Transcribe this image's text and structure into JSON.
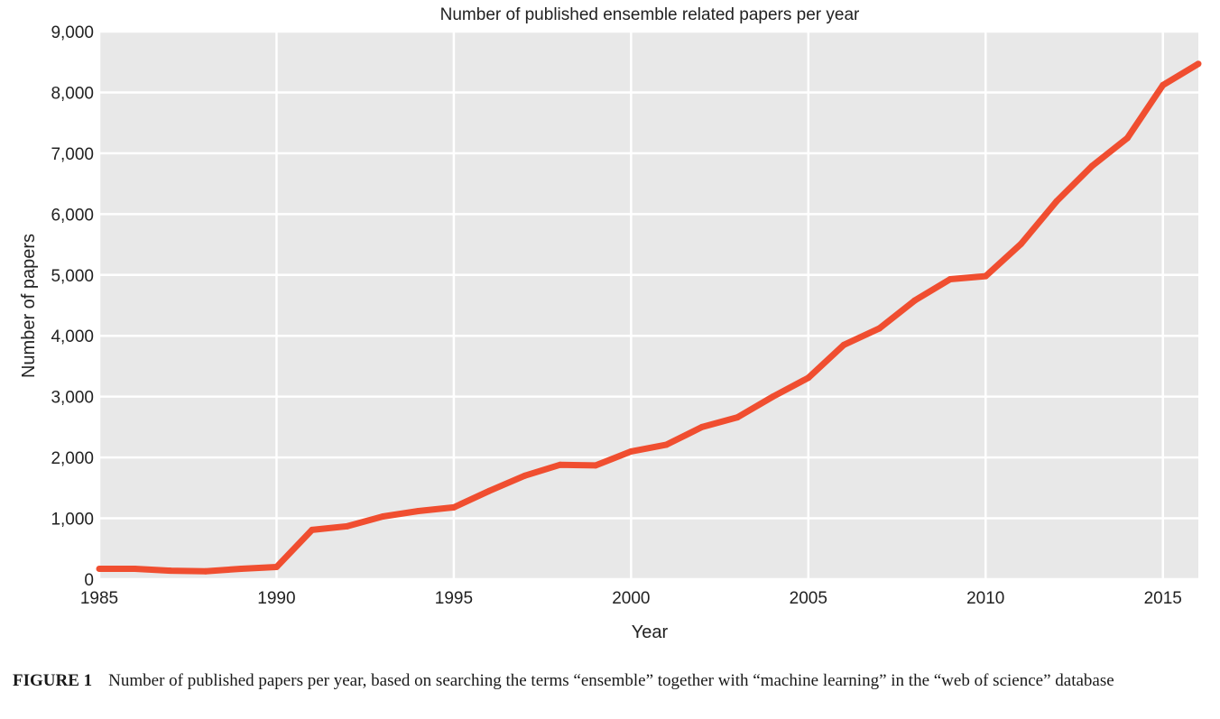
{
  "colors": {
    "plot_background": "#e8e8e8",
    "grid": "#ffffff",
    "line": "#f04e30"
  },
  "chart_data": {
    "type": "line",
    "title": "Number of published ensemble related papers per year",
    "xlabel": "Year",
    "ylabel": "Number of papers",
    "xlim": [
      1985,
      2016
    ],
    "ylim": [
      0,
      9000
    ],
    "x_ticks": [
      1985,
      1990,
      1995,
      2000,
      2005,
      2010,
      2015
    ],
    "x_tick_labels": [
      "1985",
      "1990",
      "1995",
      "2000",
      "2005",
      "2010",
      "2015"
    ],
    "y_ticks": [
      0,
      1000,
      2000,
      3000,
      4000,
      5000,
      6000,
      7000,
      8000,
      9000
    ],
    "y_tick_labels": [
      "0",
      "1,000",
      "2,000",
      "3,000",
      "4,000",
      "5,000",
      "6,000",
      "7,000",
      "8,000",
      "9,000"
    ],
    "grid": true,
    "legend": "none",
    "x": [
      1985,
      1986,
      1987,
      1988,
      1989,
      1990,
      1991,
      1992,
      1993,
      1994,
      1995,
      1996,
      1997,
      1998,
      1999,
      2000,
      2001,
      2002,
      2003,
      2004,
      2005,
      2006,
      2007,
      2008,
      2009,
      2010,
      2011,
      2012,
      2013,
      2014,
      2015,
      2016
    ],
    "series": [
      {
        "values": [
          170,
          170,
          140,
          130,
          170,
          200,
          810,
          870,
          1030,
          1120,
          1180,
          1450,
          1700,
          1880,
          1870,
          2100,
          2210,
          2500,
          2660,
          3000,
          3310,
          3850,
          4120,
          4580,
          4930,
          4980,
          5510,
          6210,
          6790,
          7250,
          8120,
          8470
        ]
      }
    ]
  },
  "caption": {
    "label": "FIGURE 1",
    "text": "Number of published papers per year, based on searching the terms “ensemble” together with “machine learning” in the “web of science” database"
  }
}
